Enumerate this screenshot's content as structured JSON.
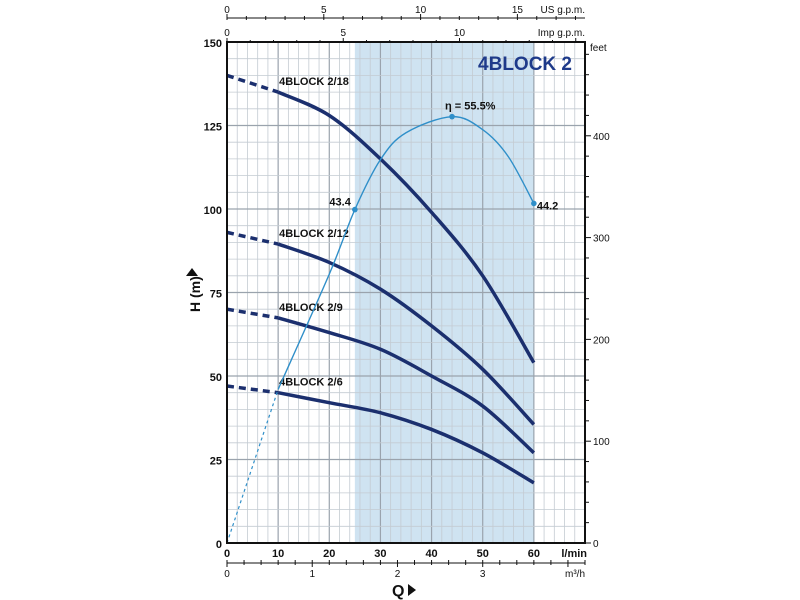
{
  "chart_data": {
    "type": "line",
    "title": "4BLOCK 2",
    "xlabel": "Q",
    "ylabel": "H (m)",
    "x_unit": "l/min",
    "xlim": [
      0,
      70
    ],
    "ylim": [
      0,
      150
    ],
    "x_ticks": [
      0,
      10,
      20,
      30,
      40,
      50,
      60
    ],
    "y_ticks": [
      0,
      25,
      50,
      75,
      100,
      125,
      150
    ],
    "grid": true,
    "shaded_range": [
      25,
      60
    ],
    "secondary_axes": {
      "us_gpm": {
        "label": "US g.p.m.",
        "ticks": [
          0,
          5,
          10,
          15
        ]
      },
      "imp_gpm": {
        "label": "Imp g.p.m.",
        "ticks": [
          0,
          5,
          10
        ]
      },
      "m3h": {
        "label": "m³/h",
        "ticks": [
          0,
          1,
          2,
          3
        ]
      },
      "feet": {
        "label": "feet",
        "ticks": [
          0,
          100,
          200,
          300,
          400
        ]
      }
    },
    "series": [
      {
        "name": "4BLOCK 2/18",
        "x": [
          0,
          10,
          20,
          30,
          40,
          50,
          60
        ],
        "y": [
          140,
          135,
          128,
          115,
          99,
          80,
          54
        ]
      },
      {
        "name": "4BLOCK 2/12",
        "x": [
          0,
          10,
          20,
          30,
          40,
          50,
          60
        ],
        "y": [
          93,
          89.5,
          84,
          76,
          65,
          52,
          35.5
        ]
      },
      {
        "name": "4BLOCK 2/9",
        "x": [
          0,
          10,
          20,
          30,
          40,
          50,
          60
        ],
        "y": [
          70,
          67.4,
          63,
          58,
          50,
          41,
          27
        ]
      },
      {
        "name": "4BLOCK 2/6",
        "x": [
          0,
          10,
          20,
          30,
          40,
          50,
          60
        ],
        "y": [
          47,
          45,
          42,
          39,
          34,
          27,
          18
        ]
      }
    ],
    "dashed_until_x": 10,
    "efficiency": {
      "name": "η",
      "unit": "%",
      "h_per_percent": 2.3,
      "x": [
        0,
        10,
        20,
        25,
        30,
        35,
        44,
        50,
        55,
        60
      ],
      "y": [
        0,
        20,
        35,
        43.4,
        49.9,
        53.4,
        55.5,
        53.8,
        50.3,
        44.2
      ],
      "labels": [
        {
          "x": 25,
          "value": 43.4,
          "text": "43.4"
        },
        {
          "x": 44,
          "value": 55.5,
          "text": "η = 55.5%"
        },
        {
          "x": 60,
          "value": 44.2,
          "text": "44.2"
        }
      ]
    },
    "colors": {
      "curve": "#1b2f6e",
      "efficiency": "#2f8fc9",
      "shade": "#cfe3f1",
      "title": "#1e3a8a"
    }
  }
}
